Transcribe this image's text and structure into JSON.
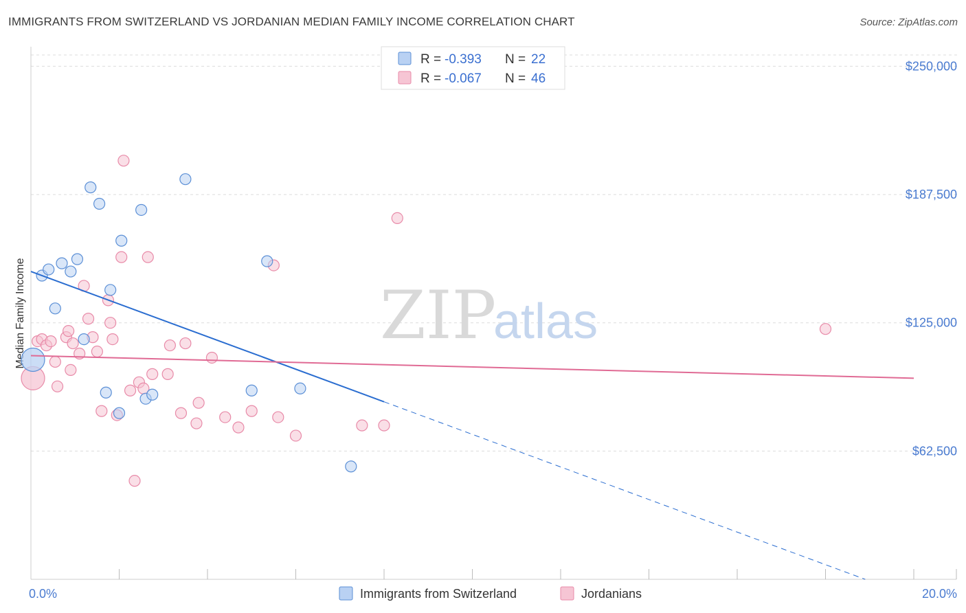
{
  "title": "IMMIGRANTS FROM SWITZERLAND VS JORDANIAN MEDIAN FAMILY INCOME CORRELATION CHART",
  "source": "Source: ZipAtlas.com",
  "watermark": {
    "zip": "ZIP",
    "atlas": "atlas"
  },
  "colors": {
    "blue": "#5b8fd6",
    "blue_fill": "#b9d1f3",
    "blue_line": "#2a6dd0",
    "pink": "#e88aa8",
    "pink_fill": "#f6c5d4",
    "pink_line": "#e06a94",
    "grid": "#dcdcdc",
    "tick_text": "#4a7bd0"
  },
  "legend": {
    "r_label": "R =",
    "n_label": "N =",
    "series": [
      {
        "r": "-0.393",
        "n": "22"
      },
      {
        "r": "-0.067",
        "n": "46"
      }
    ]
  },
  "chart_data": {
    "type": "scatter",
    "title": "IMMIGRANTS FROM SWITZERLAND VS JORDANIAN MEDIAN FAMILY INCOME CORRELATION CHART",
    "xlabel": "",
    "ylabel": "Median Family Income",
    "xlim": [
      0,
      20
    ],
    "ylim": [
      0,
      250000
    ],
    "x_tick_labels": [
      "0.0%",
      "20.0%"
    ],
    "y_ticks": [
      62500,
      125000,
      187500,
      250000
    ],
    "y_tick_labels": [
      "$62,500",
      "$125,000",
      "$187,500",
      "$250,000"
    ],
    "series": [
      {
        "name": "Immigrants from Switzerland",
        "points": [
          [
            0.0,
            107000
          ],
          [
            0.25,
            148000
          ],
          [
            0.4,
            151000
          ],
          [
            0.55,
            132000
          ],
          [
            0.7,
            154000
          ],
          [
            0.9,
            150000
          ],
          [
            1.05,
            156000
          ],
          [
            1.2,
            117000
          ],
          [
            1.35,
            191000
          ],
          [
            1.55,
            183000
          ],
          [
            1.7,
            91000
          ],
          [
            1.8,
            141000
          ],
          [
            2.0,
            81000
          ],
          [
            2.05,
            165000
          ],
          [
            2.5,
            180000
          ],
          [
            2.6,
            88000
          ],
          [
            2.75,
            90000
          ],
          [
            3.5,
            195000
          ],
          [
            5.0,
            92000
          ],
          [
            5.35,
            155000
          ],
          [
            6.1,
            93000
          ],
          [
            7.25,
            55000
          ]
        ],
        "trend": {
          "x0": 0.0,
          "y0": 150000,
          "x_solid_end": 8.0,
          "x1": 18.9,
          "y1": 0
        }
      },
      {
        "name": "Jordanians",
        "points": [
          [
            0.0,
            98000
          ],
          [
            0.15,
            116000
          ],
          [
            0.25,
            117000
          ],
          [
            0.35,
            114000
          ],
          [
            0.45,
            116000
          ],
          [
            0.55,
            106000
          ],
          [
            0.6,
            94000
          ],
          [
            0.8,
            118000
          ],
          [
            0.85,
            121000
          ],
          [
            0.9,
            102000
          ],
          [
            0.95,
            115000
          ],
          [
            1.1,
            110000
          ],
          [
            1.2,
            143000
          ],
          [
            1.3,
            127000
          ],
          [
            1.4,
            118000
          ],
          [
            1.5,
            111000
          ],
          [
            1.6,
            82000
          ],
          [
            1.75,
            136000
          ],
          [
            1.8,
            125000
          ],
          [
            1.85,
            117000
          ],
          [
            1.95,
            80000
          ],
          [
            2.05,
            157000
          ],
          [
            2.1,
            204000
          ],
          [
            2.25,
            92000
          ],
          [
            2.35,
            48000
          ],
          [
            2.45,
            96000
          ],
          [
            2.55,
            93000
          ],
          [
            2.65,
            157000
          ],
          [
            2.75,
            100000
          ],
          [
            3.1,
            100000
          ],
          [
            3.15,
            114000
          ],
          [
            3.4,
            81000
          ],
          [
            3.5,
            115000
          ],
          [
            3.75,
            76000
          ],
          [
            3.8,
            86000
          ],
          [
            4.1,
            108000
          ],
          [
            4.4,
            79000
          ],
          [
            4.7,
            74000
          ],
          [
            5.0,
            82000
          ],
          [
            5.5,
            153000
          ],
          [
            5.6,
            79000
          ],
          [
            6.0,
            70000
          ],
          [
            7.5,
            75000
          ],
          [
            8.0,
            75000
          ],
          [
            8.3,
            176000
          ],
          [
            18.0,
            122000
          ]
        ],
        "trend": {
          "x0": 0.0,
          "y0": 109000,
          "x1": 20.0,
          "y1": 98000
        }
      }
    ],
    "legend_position": "top-center"
  }
}
